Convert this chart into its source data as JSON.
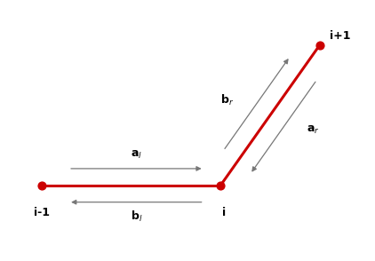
{
  "vertices": {
    "i_minus_1": [
      0.08,
      0.42
    ],
    "i": [
      0.62,
      0.42
    ],
    "i_plus_1": [
      0.92,
      0.88
    ]
  },
  "red_color": "#cc0000",
  "gray_color": "#777777",
  "dot_size": 40,
  "line_width": 2.2,
  "arrow_lw": 0.9,
  "labels": {
    "i_minus_1": "i-1",
    "i": "i",
    "i_plus_1": "i+1"
  },
  "a_l_label": "a$_l$",
  "b_l_label": "b$_l$",
  "a_r_label": "a$_r$",
  "b_r_label": "b$_r$",
  "background_color": "#ffffff",
  "xlim": [
    -0.04,
    1.08
  ],
  "ylim": [
    0.18,
    1.02
  ]
}
